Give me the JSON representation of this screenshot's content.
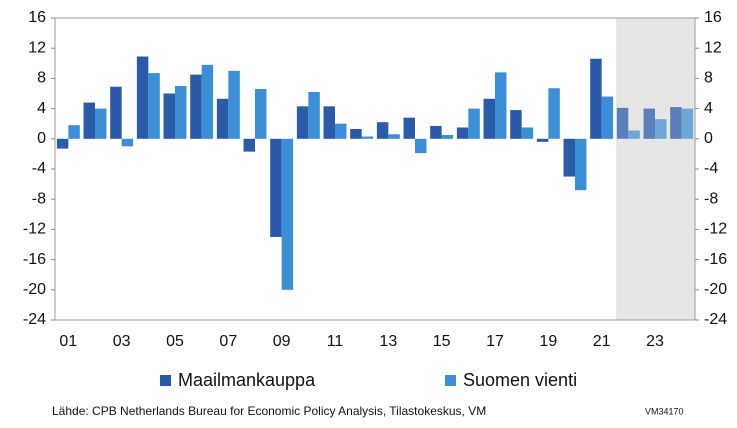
{
  "chart_data": {
    "type": "bar",
    "categories": [
      "01",
      null,
      "03",
      null,
      "05",
      null,
      "07",
      null,
      "09",
      null,
      "11",
      null,
      "13",
      null,
      "15",
      null,
      "17",
      null,
      "19",
      null,
      "21",
      null,
      "23",
      null
    ],
    "series": [
      {
        "name": "Maailmankauppa",
        "color": "#2b5aa8",
        "forecast_color": "#5b7fbd",
        "values": [
          -1.3,
          4.8,
          6.9,
          10.9,
          6.0,
          8.5,
          5.3,
          -1.7,
          -13.0,
          4.3,
          4.3,
          1.3,
          2.2,
          2.8,
          1.7,
          1.5,
          5.3,
          3.8,
          -0.4,
          -5.0,
          10.6,
          4.1,
          4.0,
          4.2
        ]
      },
      {
        "name": "Suomen vienti",
        "color": "#3b8fd6",
        "forecast_color": "#6ea6d8",
        "values": [
          1.8,
          4.0,
          -1.0,
          8.7,
          7.0,
          9.8,
          9.0,
          6.6,
          -20.0,
          6.2,
          2.0,
          0.3,
          0.6,
          -1.9,
          0.5,
          4.0,
          8.8,
          1.5,
          6.7,
          -6.8,
          5.6,
          1.1,
          2.6,
          4.0
        ]
      }
    ],
    "forecast_from_index": 21,
    "ylim": [
      -24,
      16
    ],
    "yticks": [
      -24,
      -20,
      -16,
      -12,
      -8,
      -4,
      0,
      4,
      8,
      12,
      16
    ],
    "y2lim": [
      -24,
      16
    ],
    "y2ticks": [
      -24,
      -20,
      -16,
      -12,
      -8,
      -4,
      0,
      4,
      8,
      12,
      16
    ],
    "source": "Lähde: CPB Netherlands Bureau for Economic Policy Analysis, Tilastokeskus, VM",
    "code": "VM34170"
  }
}
